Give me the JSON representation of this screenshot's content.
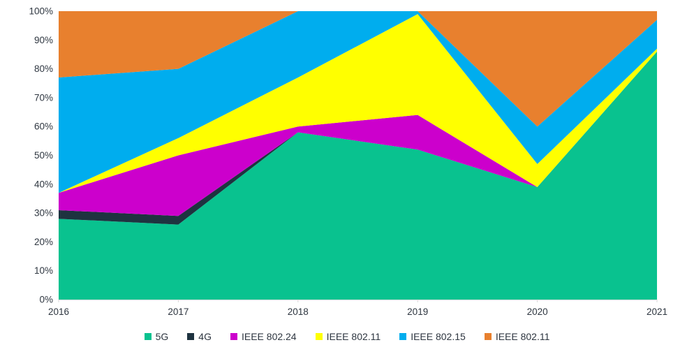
{
  "chart_data": {
    "type": "area",
    "stacking": "percent",
    "title": "",
    "categories": [
      "2016",
      "2017",
      "2018",
      "2019",
      "2020",
      "2021"
    ],
    "series": [
      {
        "name": "5G",
        "color": "#09c28f",
        "values": [
          28,
          26,
          58,
          52,
          39,
          86
        ]
      },
      {
        "name": "4G",
        "color": "#1e3340",
        "values": [
          3,
          3,
          0,
          0,
          0,
          0
        ]
      },
      {
        "name": "IEEE 802.24",
        "color": "#cc00cc",
        "values": [
          6,
          21,
          2,
          12,
          0,
          0
        ]
      },
      {
        "name": "IEEE 802.11",
        "color": "#ffff00",
        "values": [
          0,
          6,
          17,
          35,
          8,
          1
        ]
      },
      {
        "name": "IEEE 802.15",
        "color": "#00adee",
        "values": [
          40,
          24,
          23,
          1,
          13,
          10
        ]
      },
      {
        "name": "IEEE 802.11",
        "color": "#e8802e",
        "values": [
          23,
          20,
          0,
          0,
          40,
          3
        ]
      }
    ],
    "y_axis": {
      "min": 0,
      "max": 100,
      "step": 10,
      "tick_labels": [
        "0%",
        "10%",
        "20%",
        "30%",
        "40%",
        "50%",
        "60%",
        "70%",
        "80%",
        "90%",
        "100%"
      ]
    },
    "x_axis": {
      "labels": [
        "2016",
        "2017",
        "2018",
        "2019",
        "2020",
        "2021"
      ]
    },
    "legend_position": "bottom",
    "grid": false,
    "axis_line_color": "#d9d9d9",
    "text_color": "#2e3640"
  }
}
